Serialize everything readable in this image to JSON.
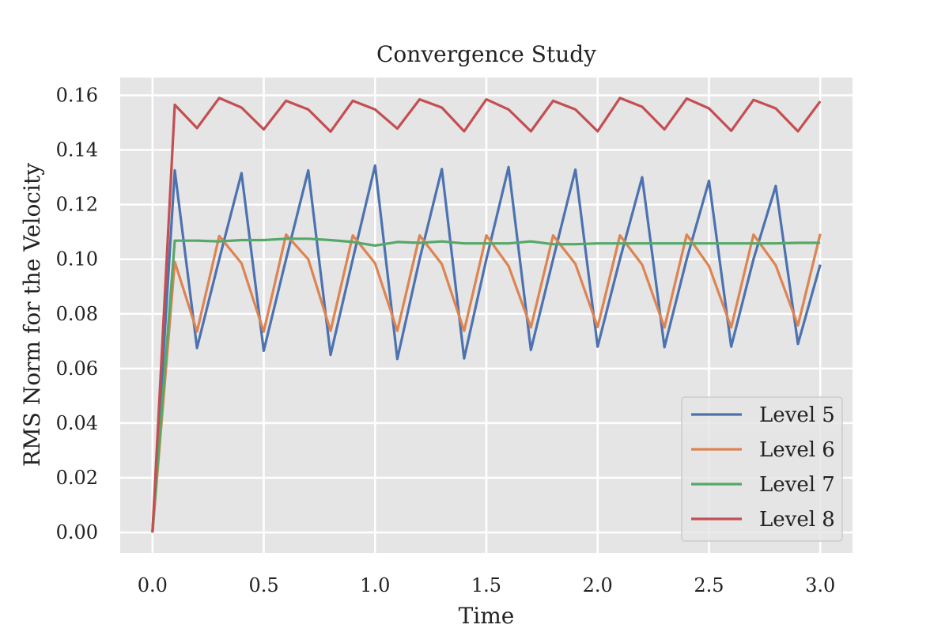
{
  "chart_data": {
    "type": "line",
    "title": "Convergence Study",
    "xlabel": "Time",
    "ylabel": "RMS Norm for the Velocity",
    "xlim": [
      -0.145,
      3.145
    ],
    "ylim": [
      -0.0075,
      0.1665
    ],
    "xticks": [
      0.0,
      0.5,
      1.0,
      1.5,
      2.0,
      2.5,
      3.0
    ],
    "xtick_labels": [
      "0.0",
      "0.5",
      "1.0",
      "1.5",
      "2.0",
      "2.5",
      "3.0"
    ],
    "yticks": [
      0.0,
      0.02,
      0.04,
      0.06,
      0.08,
      0.1,
      0.12,
      0.14,
      0.16
    ],
    "ytick_labels": [
      "0.00",
      "0.02",
      "0.04",
      "0.06",
      "0.08",
      "0.10",
      "0.12",
      "0.14",
      "0.16"
    ],
    "grid": true,
    "legend_position": "lower-right",
    "x": [
      0.0,
      0.1,
      0.2,
      0.3,
      0.4,
      0.5,
      0.6,
      0.7,
      0.8,
      0.9,
      1.0,
      1.1,
      1.2,
      1.3,
      1.4,
      1.5,
      1.6,
      1.7,
      1.8,
      1.9,
      2.0,
      2.1,
      2.2,
      2.3,
      2.4,
      2.5,
      2.6,
      2.7,
      2.8,
      2.9,
      3.0
    ],
    "series": [
      {
        "name": "Level 5",
        "color": "#4c72b0",
        "values": [
          0.0,
          0.1325,
          0.0675,
          0.1,
          0.1315,
          0.0665,
          0.1,
          0.1325,
          0.065,
          0.1,
          0.1343,
          0.0635,
          0.1,
          0.133,
          0.0637,
          0.1,
          0.1337,
          0.0668,
          0.1,
          0.1328,
          0.068,
          0.1,
          0.13,
          0.0678,
          0.1,
          0.1287,
          0.068,
          0.1,
          0.1268,
          0.069,
          0.098
        ]
      },
      {
        "name": "Level 6",
        "color": "#dd8452",
        "values": [
          0.0,
          0.099,
          0.0735,
          0.1085,
          0.0985,
          0.0735,
          0.109,
          0.1,
          0.0738,
          0.1087,
          0.0985,
          0.0738,
          0.1087,
          0.0982,
          0.0738,
          0.1087,
          0.0975,
          0.075,
          0.1087,
          0.0983,
          0.0752,
          0.1087,
          0.098,
          0.075,
          0.109,
          0.0975,
          0.075,
          0.109,
          0.0978,
          0.0758,
          0.1093
        ]
      },
      {
        "name": "Level 7",
        "color": "#55a868",
        "values": [
          0.0,
          0.1068,
          0.1068,
          0.1065,
          0.107,
          0.107,
          0.1075,
          0.1075,
          0.107,
          0.1063,
          0.105,
          0.1063,
          0.106,
          0.1065,
          0.1058,
          0.1058,
          0.1058,
          0.1065,
          0.1055,
          0.1055,
          0.1058,
          0.1058,
          0.1058,
          0.1058,
          0.1058,
          0.1058,
          0.1058,
          0.1058,
          0.1058,
          0.106,
          0.106
        ]
      },
      {
        "name": "Level 8",
        "color": "#c44e52",
        "values": [
          0.0,
          0.1565,
          0.148,
          0.159,
          0.1555,
          0.1475,
          0.158,
          0.1548,
          0.1467,
          0.158,
          0.1548,
          0.1478,
          0.1585,
          0.1555,
          0.1468,
          0.1585,
          0.1548,
          0.1468,
          0.158,
          0.1548,
          0.1468,
          0.159,
          0.1558,
          0.1475,
          0.1588,
          0.1552,
          0.147,
          0.1583,
          0.1552,
          0.1468,
          0.1578
        ]
      }
    ]
  }
}
